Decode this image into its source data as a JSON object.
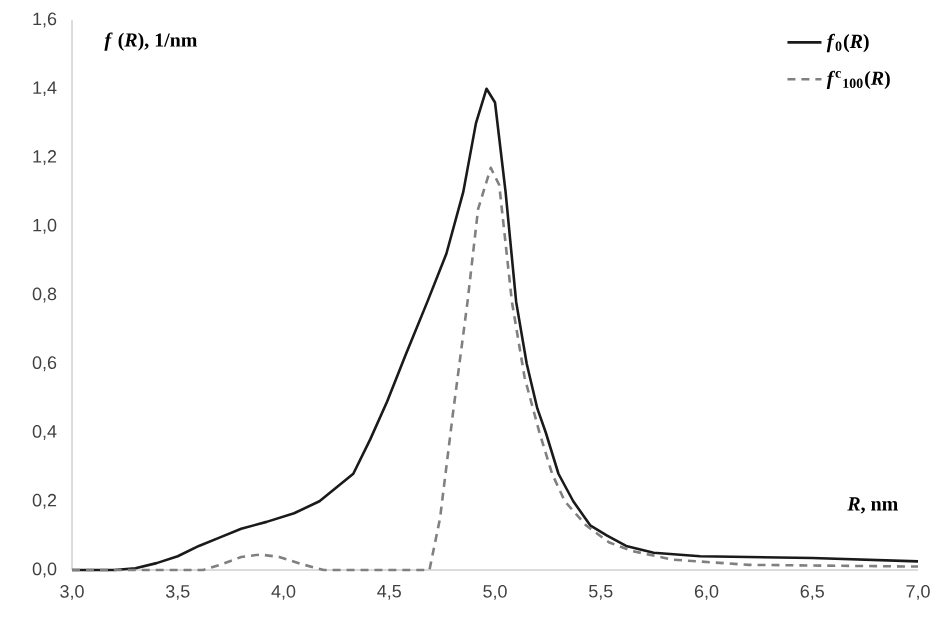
{
  "chart_data": {
    "type": "line",
    "xlabel": "*R*, nm",
    "ylabel": "*f* (*R*), 1/nm",
    "xlim": [
      3.0,
      7.0
    ],
    "ylim": [
      0,
      1.6
    ],
    "xticks": [
      {
        "value": 3.0,
        "label": "3,0"
      },
      {
        "value": 3.5,
        "label": "3,5"
      },
      {
        "value": 4.0,
        "label": "4,0"
      },
      {
        "value": 4.5,
        "label": "4,5"
      },
      {
        "value": 5.0,
        "label": "5,0"
      },
      {
        "value": 5.5,
        "label": "5,5"
      },
      {
        "value": 6.0,
        "label": "6,0"
      },
      {
        "value": 6.5,
        "label": "6,5"
      },
      {
        "value": 7.0,
        "label": "7,0"
      }
    ],
    "yticks": [
      {
        "value": 0,
        "label": "0,0"
      },
      {
        "value": 0.2,
        "label": "0,2"
      },
      {
        "value": 0.4,
        "label": "0,4"
      },
      {
        "value": 0.6,
        "label": "0,6"
      },
      {
        "value": 0.8,
        "label": "0,8"
      },
      {
        "value": 1.0,
        "label": "1,0"
      },
      {
        "value": 1.2,
        "label": "1,2"
      },
      {
        "value": 1.4,
        "label": "1,4"
      },
      {
        "value": 1.6,
        "label": "1,6"
      }
    ],
    "legend": "top right",
    "series": [
      {
        "name": "*f*$_{0}$(*R*)",
        "color": "#1a1a1a",
        "line_style": "solid",
        "x": [
          3.0,
          3.2,
          3.3,
          3.4,
          3.5,
          3.6,
          3.7,
          3.8,
          3.92,
          4.05,
          4.17,
          4.25,
          4.33,
          4.41,
          4.49,
          4.58,
          4.68,
          4.77,
          4.85,
          4.91,
          4.96,
          5.0,
          5.05,
          5.1,
          5.15,
          5.2,
          5.24,
          5.3,
          5.37,
          5.45,
          5.53,
          5.62,
          5.75,
          5.97,
          6.5,
          7.0
        ],
        "values": [
          0.0,
          0.0,
          0.005,
          0.02,
          0.04,
          0.07,
          0.095,
          0.12,
          0.14,
          0.165,
          0.2,
          0.24,
          0.28,
          0.38,
          0.49,
          0.63,
          0.78,
          0.92,
          1.1,
          1.3,
          1.4,
          1.36,
          1.1,
          0.78,
          0.6,
          0.47,
          0.4,
          0.28,
          0.2,
          0.13,
          0.1,
          0.07,
          0.05,
          0.04,
          0.035,
          0.025
        ]
      },
      {
        "name": "*f*$^{c}$$_{100}$(*R*)",
        "color": "#808080",
        "line_style": "dashed",
        "x": [
          3.0,
          3.62,
          3.7,
          3.8,
          3.89,
          3.98,
          4.08,
          4.19,
          4.69,
          4.74,
          4.8,
          4.87,
          4.92,
          4.98,
          5.02,
          5.08,
          5.14,
          5.21,
          5.27,
          5.33,
          5.43,
          5.54,
          5.65,
          5.84,
          6.2,
          7.0
        ],
        "values": [
          0.0,
          0.0,
          0.015,
          0.038,
          0.045,
          0.038,
          0.018,
          0.0,
          0.0,
          0.15,
          0.45,
          0.78,
          1.05,
          1.17,
          1.12,
          0.78,
          0.56,
          0.4,
          0.28,
          0.2,
          0.13,
          0.08,
          0.055,
          0.03,
          0.015,
          0.01
        ]
      }
    ]
  }
}
